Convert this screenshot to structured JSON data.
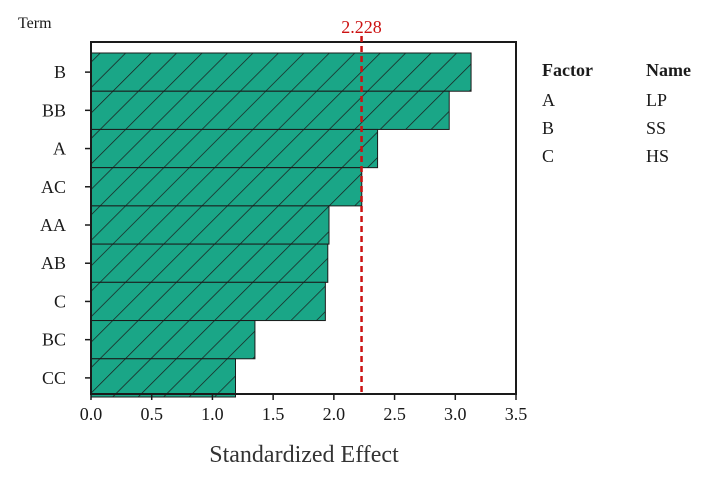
{
  "chart_data": {
    "type": "bar",
    "orientation": "horizontal",
    "title": "",
    "term_label": "Term",
    "xlabel": "Standardized Effect",
    "ylabel": "",
    "xlim": [
      0,
      3.5
    ],
    "xticks": [
      "0.0",
      "0.5",
      "1.0",
      "1.5",
      "2.0",
      "2.5",
      "3.0",
      "3.5"
    ],
    "categories": [
      "B",
      "BB",
      "A",
      "AC",
      "AA",
      "AB",
      "C",
      "BC",
      "CC"
    ],
    "values": [
      3.13,
      2.95,
      2.36,
      2.23,
      1.96,
      1.95,
      1.93,
      1.35,
      1.19
    ],
    "reference_line": {
      "value": 2.228,
      "label": "2.228",
      "color": "#cc1111",
      "style": "dashed"
    },
    "bar_color": "#1aa687",
    "hatch": "diagonal",
    "grid": false,
    "legend": "right"
  },
  "legend": {
    "header_factor": "Factor",
    "header_name": "Name",
    "rows": [
      {
        "factor": "A",
        "name": "LP"
      },
      {
        "factor": "B",
        "name": "SS"
      },
      {
        "factor": "C",
        "name": "HS"
      }
    ]
  }
}
